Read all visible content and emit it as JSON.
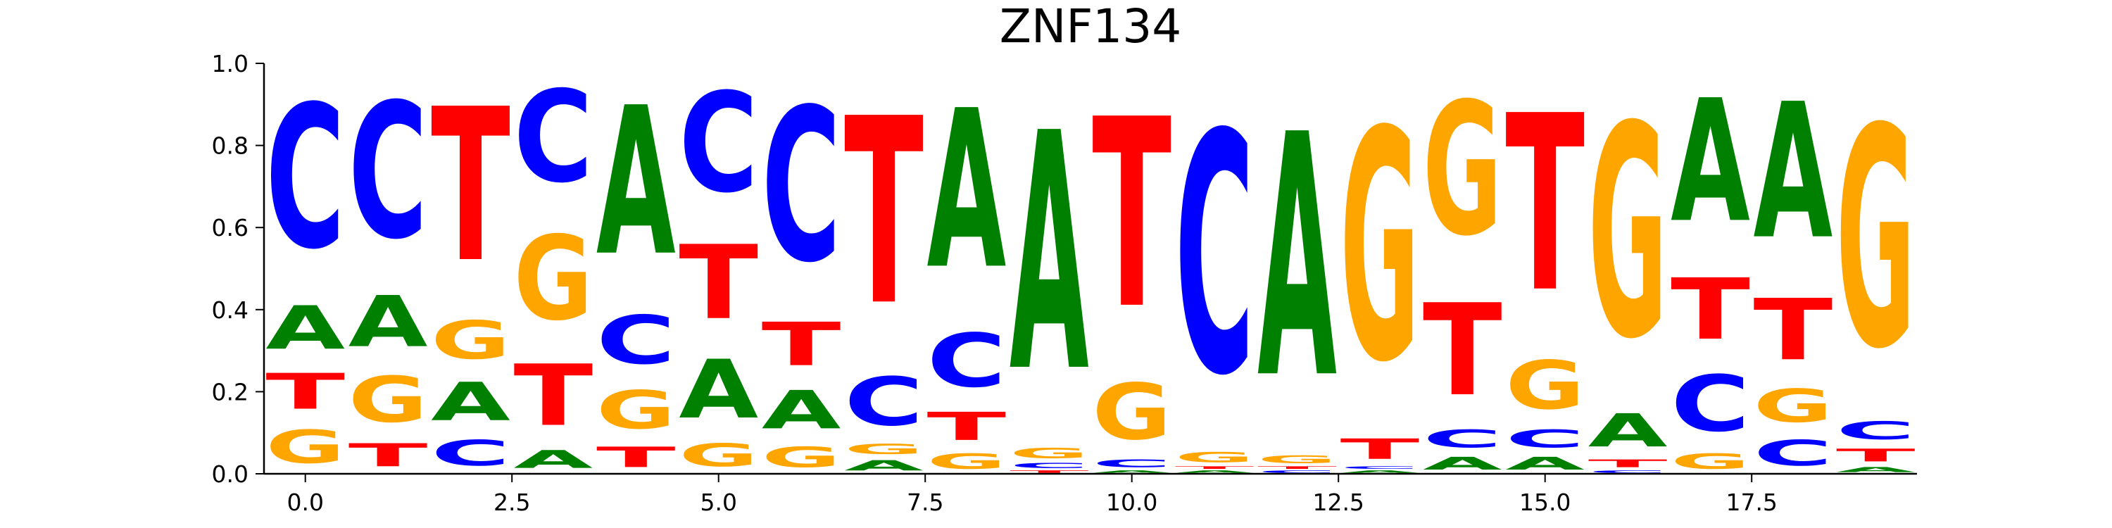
{
  "chart_data": {
    "type": "sequence-logo",
    "title": "ZNF134",
    "xlabel": "",
    "ylabel": "",
    "xlim": [
      -0.5,
      19.5
    ],
    "ylim": [
      0,
      1
    ],
    "x_ticks": [
      0,
      2.5,
      5,
      7.5,
      10,
      12.5,
      15,
      17.5
    ],
    "x_tick_labels": [
      "0.0",
      "2.5",
      "5.0",
      "7.5",
      "10.0",
      "12.5",
      "15.0",
      "17.5"
    ],
    "y_ticks": [
      0,
      0.2,
      0.4,
      0.6,
      0.8,
      1.0
    ],
    "y_tick_labels": [
      "0.0",
      "0.2",
      "0.4",
      "0.6",
      "0.8",
      "1.0"
    ],
    "colors": {
      "A": "#008000",
      "C": "#0000ff",
      "G": "#ffa500",
      "T": "#ff0000"
    },
    "positions": [
      {
        "x": 0,
        "A": 0.17,
        "C": 0.56,
        "G": 0.13,
        "T": 0.14
      },
      {
        "x": 1,
        "A": 0.2,
        "C": 0.53,
        "G": 0.18,
        "T": 0.09
      },
      {
        "x": 2,
        "A": 0.15,
        "C": 0.1,
        "G": 0.15,
        "T": 0.6
      },
      {
        "x": 3,
        "A": 0.07,
        "C": 0.36,
        "G": 0.33,
        "T": 0.24
      },
      {
        "x": 4,
        "A": 0.58,
        "C": 0.19,
        "G": 0.15,
        "T": 0.08
      },
      {
        "x": 5,
        "A": 0.23,
        "C": 0.39,
        "G": 0.09,
        "T": 0.29
      },
      {
        "x": 6,
        "A": 0.15,
        "C": 0.6,
        "G": 0.08,
        "T": 0.17
      },
      {
        "x": 7,
        "A": 0.04,
        "C": 0.19,
        "G": 0.04,
        "T": 0.73
      },
      {
        "x": 8,
        "A": 0.62,
        "C": 0.21,
        "G": 0.06,
        "T": 0.11
      },
      {
        "x": 9,
        "A": 0.93,
        "C": 0.02,
        "G": 0.04,
        "T": 0.01
      },
      {
        "x": 10,
        "A": 0.01,
        "C": 0.03,
        "G": 0.22,
        "T": 0.74
      },
      {
        "x": 11,
        "A": 0.01,
        "C": 0.94,
        "G": 0.04,
        "T": 0.01
      },
      {
        "x": 12,
        "A": 0.95,
        "C": 0.01,
        "G": 0.03,
        "T": 0.01
      },
      {
        "x": 13,
        "A": 0.01,
        "C": 0.01,
        "G": 0.9,
        "T": 0.08
      },
      {
        "x": 14,
        "A": 0.05,
        "C": 0.07,
        "G": 0.52,
        "T": 0.36
      },
      {
        "x": 15,
        "A": 0.05,
        "C": 0.07,
        "G": 0.19,
        "T": 0.69
      },
      {
        "x": 16,
        "A": 0.13,
        "C": 0.01,
        "G": 0.83,
        "T": 0.03
      },
      {
        "x": 17,
        "A": 0.48,
        "C": 0.22,
        "G": 0.06,
        "T": 0.24
      },
      {
        "x": 18,
        "A": 0.53,
        "C": 0.1,
        "G": 0.13,
        "T": 0.24
      },
      {
        "x": 19,
        "A": 0.02,
        "C": 0.07,
        "G": 0.86,
        "T": 0.05
      }
    ]
  }
}
